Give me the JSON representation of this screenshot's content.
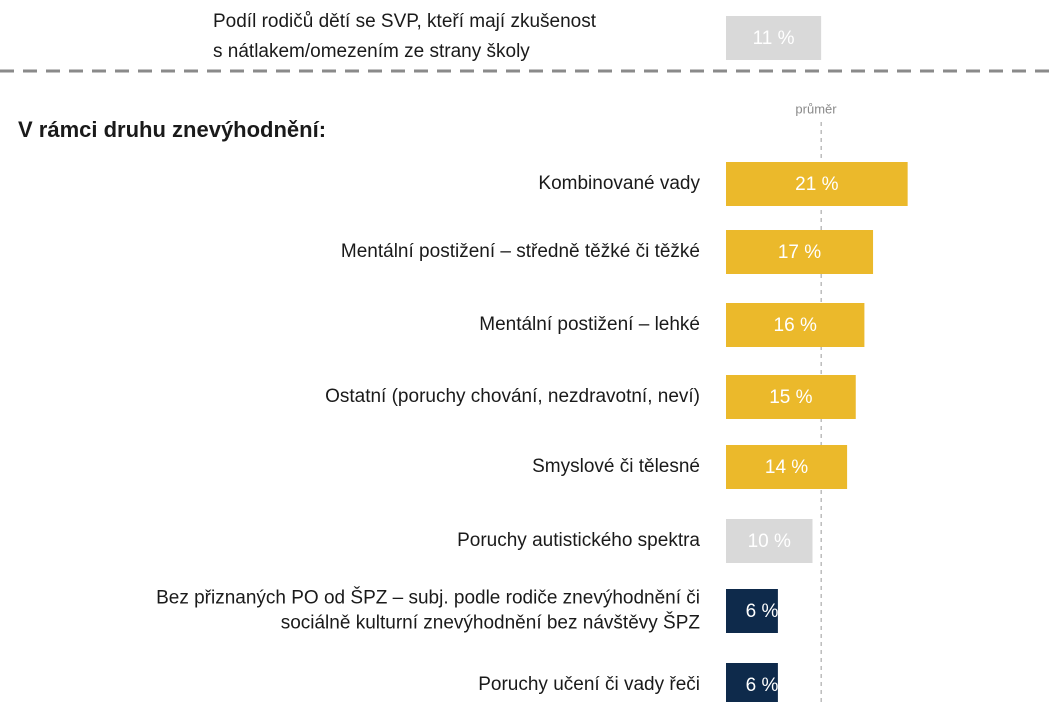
{
  "chart_data": {
    "type": "bar",
    "summary": {
      "label": [
        "Podíl rodičů dětí se SVP, kteří mají zkušenost",
        "s nátlakem/omezením ze strany školy"
      ],
      "value": 11,
      "value_label": "11 %",
      "color": "#d9d9d9"
    },
    "subtitle": "V rámci druhu znevýhodnění:",
    "average_label": "průměr",
    "categories": [
      [
        "Kombinované vady"
      ],
      [
        "Mentální postižení – středně těžké či těžké"
      ],
      [
        "Mentální postižení – lehké"
      ],
      [
        "Ostatní (poruchy chování, nezdravotní, neví)"
      ],
      [
        "Smyslové či tělesné"
      ],
      [
        "Poruchy autistického spektra"
      ],
      [
        "Bez přiznaných PO od ŠPZ – subj. podle rodiče znevýhodnění či",
        "sociálně kulturní znevýhodnění bez návštěvy ŠPZ"
      ],
      [
        "Poruchy učení či vady řeči"
      ]
    ],
    "values": [
      21,
      17,
      16,
      15,
      14,
      10,
      6,
      6
    ],
    "value_labels": [
      "21 %",
      "17 %",
      "16 %",
      "15 %",
      "14 %",
      "10 %",
      "6 %",
      "6 %"
    ],
    "colors": [
      "#ebb92b",
      "#ebb92b",
      "#ebb92b",
      "#ebb92b",
      "#ebb92b",
      "#d9d9d9",
      "#0e2a4b",
      "#0e2a4b"
    ]
  }
}
